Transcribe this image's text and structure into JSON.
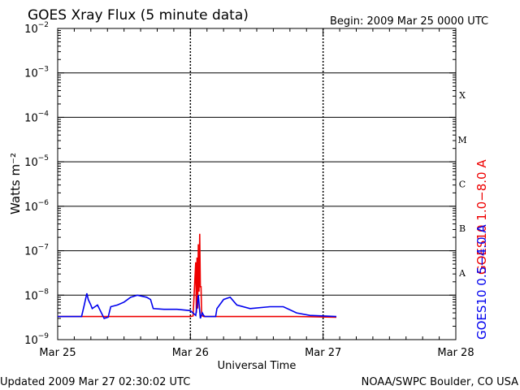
{
  "header": {
    "title": "GOES Xray Flux (5 minute data)",
    "begin": "Begin:  2009 Mar 25 0000 UTC"
  },
  "footer": {
    "updated": "Updated 2009 Mar 27 02:30:02 UTC",
    "source": "NOAA/SWPC Boulder, CO USA"
  },
  "chart_data": {
    "type": "line",
    "title": "GOES Xray Flux (5 minute data)",
    "xlabel": "Universal Time",
    "ylabel": "Watts m⁻²",
    "y_scale": "log",
    "ylim": [
      1e-09,
      0.01
    ],
    "xlim_days": [
      0,
      3
    ],
    "y_tick_bases": [
      "10",
      "10",
      "10",
      "10",
      "10",
      "10",
      "10",
      "10"
    ],
    "y_tick_exponents": [
      "−9",
      "−8",
      "−7",
      "−6",
      "−5",
      "−4",
      "−3",
      "−2"
    ],
    "y_tick_values": [
      1e-09,
      1e-08,
      1e-07,
      1e-06,
      1e-05,
      0.0001,
      0.001,
      0.01
    ],
    "x_tick_labels": [
      "Mar 25",
      "Mar 26",
      "Mar 27",
      "Mar 28"
    ],
    "x_tick_values": [
      0,
      1,
      2,
      3
    ],
    "grid": true,
    "flare_classes": [
      {
        "label": "X",
        "value": 0.000316
      },
      {
        "label": "M",
        "value": 3.16e-05
      },
      {
        "label": "C",
        "value": 3.16e-06
      },
      {
        "label": "B",
        "value": 3.16e-07
      },
      {
        "label": "A",
        "value": 3.16e-08
      }
    ],
    "colors": {
      "long": "#ee0000",
      "short": "#0000ee"
    },
    "series": [
      {
        "name": "GOES10 1.0−8.0 A",
        "color": "#ee0000",
        "points": [
          [
            0.0,
            3.3e-09
          ],
          [
            0.3,
            3.3e-09
          ],
          [
            0.6,
            3.3e-09
          ],
          [
            1.0,
            3.3e-09
          ],
          [
            1.02,
            3.4e-09
          ],
          [
            1.04,
            5.5e-08
          ],
          [
            1.045,
            4e-09
          ],
          [
            1.05,
            7e-08
          ],
          [
            1.055,
            5e-09
          ],
          [
            1.06,
            1.4e-07
          ],
          [
            1.065,
            1.2e-08
          ],
          [
            1.07,
            2.4e-07
          ],
          [
            1.075,
            1.5e-08
          ],
          [
            1.08,
            1.6e-08
          ],
          [
            1.085,
            3.5e-09
          ],
          [
            1.1,
            3.3e-09
          ],
          [
            1.2,
            3.3e-09
          ],
          [
            1.5,
            3.3e-09
          ],
          [
            1.8,
            3.3e-09
          ],
          [
            2.1,
            3.2e-09
          ]
        ]
      },
      {
        "name": "GOES10 0.5−4.0 A",
        "color": "#0000ee",
        "points": [
          [
            0.0,
            3.3e-09
          ],
          [
            0.18,
            3.3e-09
          ],
          [
            0.2,
            6e-09
          ],
          [
            0.22,
            1.1e-08
          ],
          [
            0.23,
            8e-09
          ],
          [
            0.25,
            6e-09
          ],
          [
            0.26,
            5e-09
          ],
          [
            0.3,
            6e-09
          ],
          [
            0.35,
            3e-09
          ],
          [
            0.38,
            3.2e-09
          ],
          [
            0.4,
            5.5e-09
          ],
          [
            0.45,
            6e-09
          ],
          [
            0.5,
            7e-09
          ],
          [
            0.55,
            9e-09
          ],
          [
            0.6,
            1e-08
          ],
          [
            0.67,
            9e-09
          ],
          [
            0.7,
            8e-09
          ],
          [
            0.72,
            5e-09
          ],
          [
            0.8,
            4.8e-09
          ],
          [
            0.9,
            4.8e-09
          ],
          [
            1.0,
            4.5e-09
          ],
          [
            1.04,
            3.5e-09
          ],
          [
            1.06,
            1e-08
          ],
          [
            1.075,
            3e-09
          ],
          [
            1.09,
            4e-09
          ],
          [
            1.1,
            3.5e-09
          ],
          [
            1.11,
            3.3e-09
          ],
          [
            1.19,
            3.3e-09
          ],
          [
            1.2,
            5e-09
          ],
          [
            1.25,
            8e-09
          ],
          [
            1.3,
            9e-09
          ],
          [
            1.35,
            6e-09
          ],
          [
            1.45,
            5e-09
          ],
          [
            1.6,
            5.5e-09
          ],
          [
            1.7,
            5.5e-09
          ],
          [
            1.8,
            4e-09
          ],
          [
            1.9,
            3.5e-09
          ],
          [
            2.1,
            3.3e-09
          ]
        ]
      }
    ]
  }
}
